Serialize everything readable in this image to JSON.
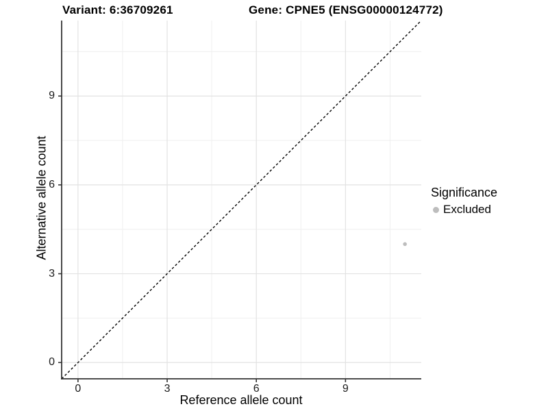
{
  "header": {
    "variant_title": "Variant: 6:36709261",
    "gene_title": "Gene: CPNE5 (ENSG00000124772)"
  },
  "chart_data": {
    "type": "scatter",
    "xlabel": "Reference allele count",
    "ylabel": "Alternative allele count",
    "xlim": [
      -0.55,
      11.55
    ],
    "ylim": [
      -0.55,
      11.55
    ],
    "x_tick_values": [
      0,
      3,
      6,
      9
    ],
    "x_tick_labels": [
      "0",
      "3",
      "6",
      "9"
    ],
    "y_tick_values": [
      0,
      3,
      6,
      9
    ],
    "y_tick_labels": [
      "0",
      "3",
      "6",
      "9"
    ],
    "x_minor_gridlines": [
      1.5,
      4.5,
      7.5,
      10.5
    ],
    "y_minor_gridlines": [
      1.5,
      4.5,
      7.5,
      10.5
    ],
    "grid": "on",
    "legend": {
      "title": "Significance",
      "position": "right",
      "items": [
        {
          "label": "Excluded",
          "color": "#bdbdbd"
        }
      ]
    },
    "series": [
      {
        "name": "Excluded",
        "color": "#bdbdbd",
        "point_radius": 2.8,
        "points": [
          {
            "x": 11,
            "y": 4
          }
        ]
      }
    ],
    "reference_line": {
      "description": "identity line y = x",
      "slope": 1,
      "intercept": 0,
      "style": "dashed",
      "color": "#000000"
    }
  },
  "colors": {
    "major_grid": "#e2e2e2",
    "minor_grid": "#efefef",
    "axis": "#333333",
    "tick": "#333333",
    "background": "#ffffff",
    "text": "#000000"
  }
}
